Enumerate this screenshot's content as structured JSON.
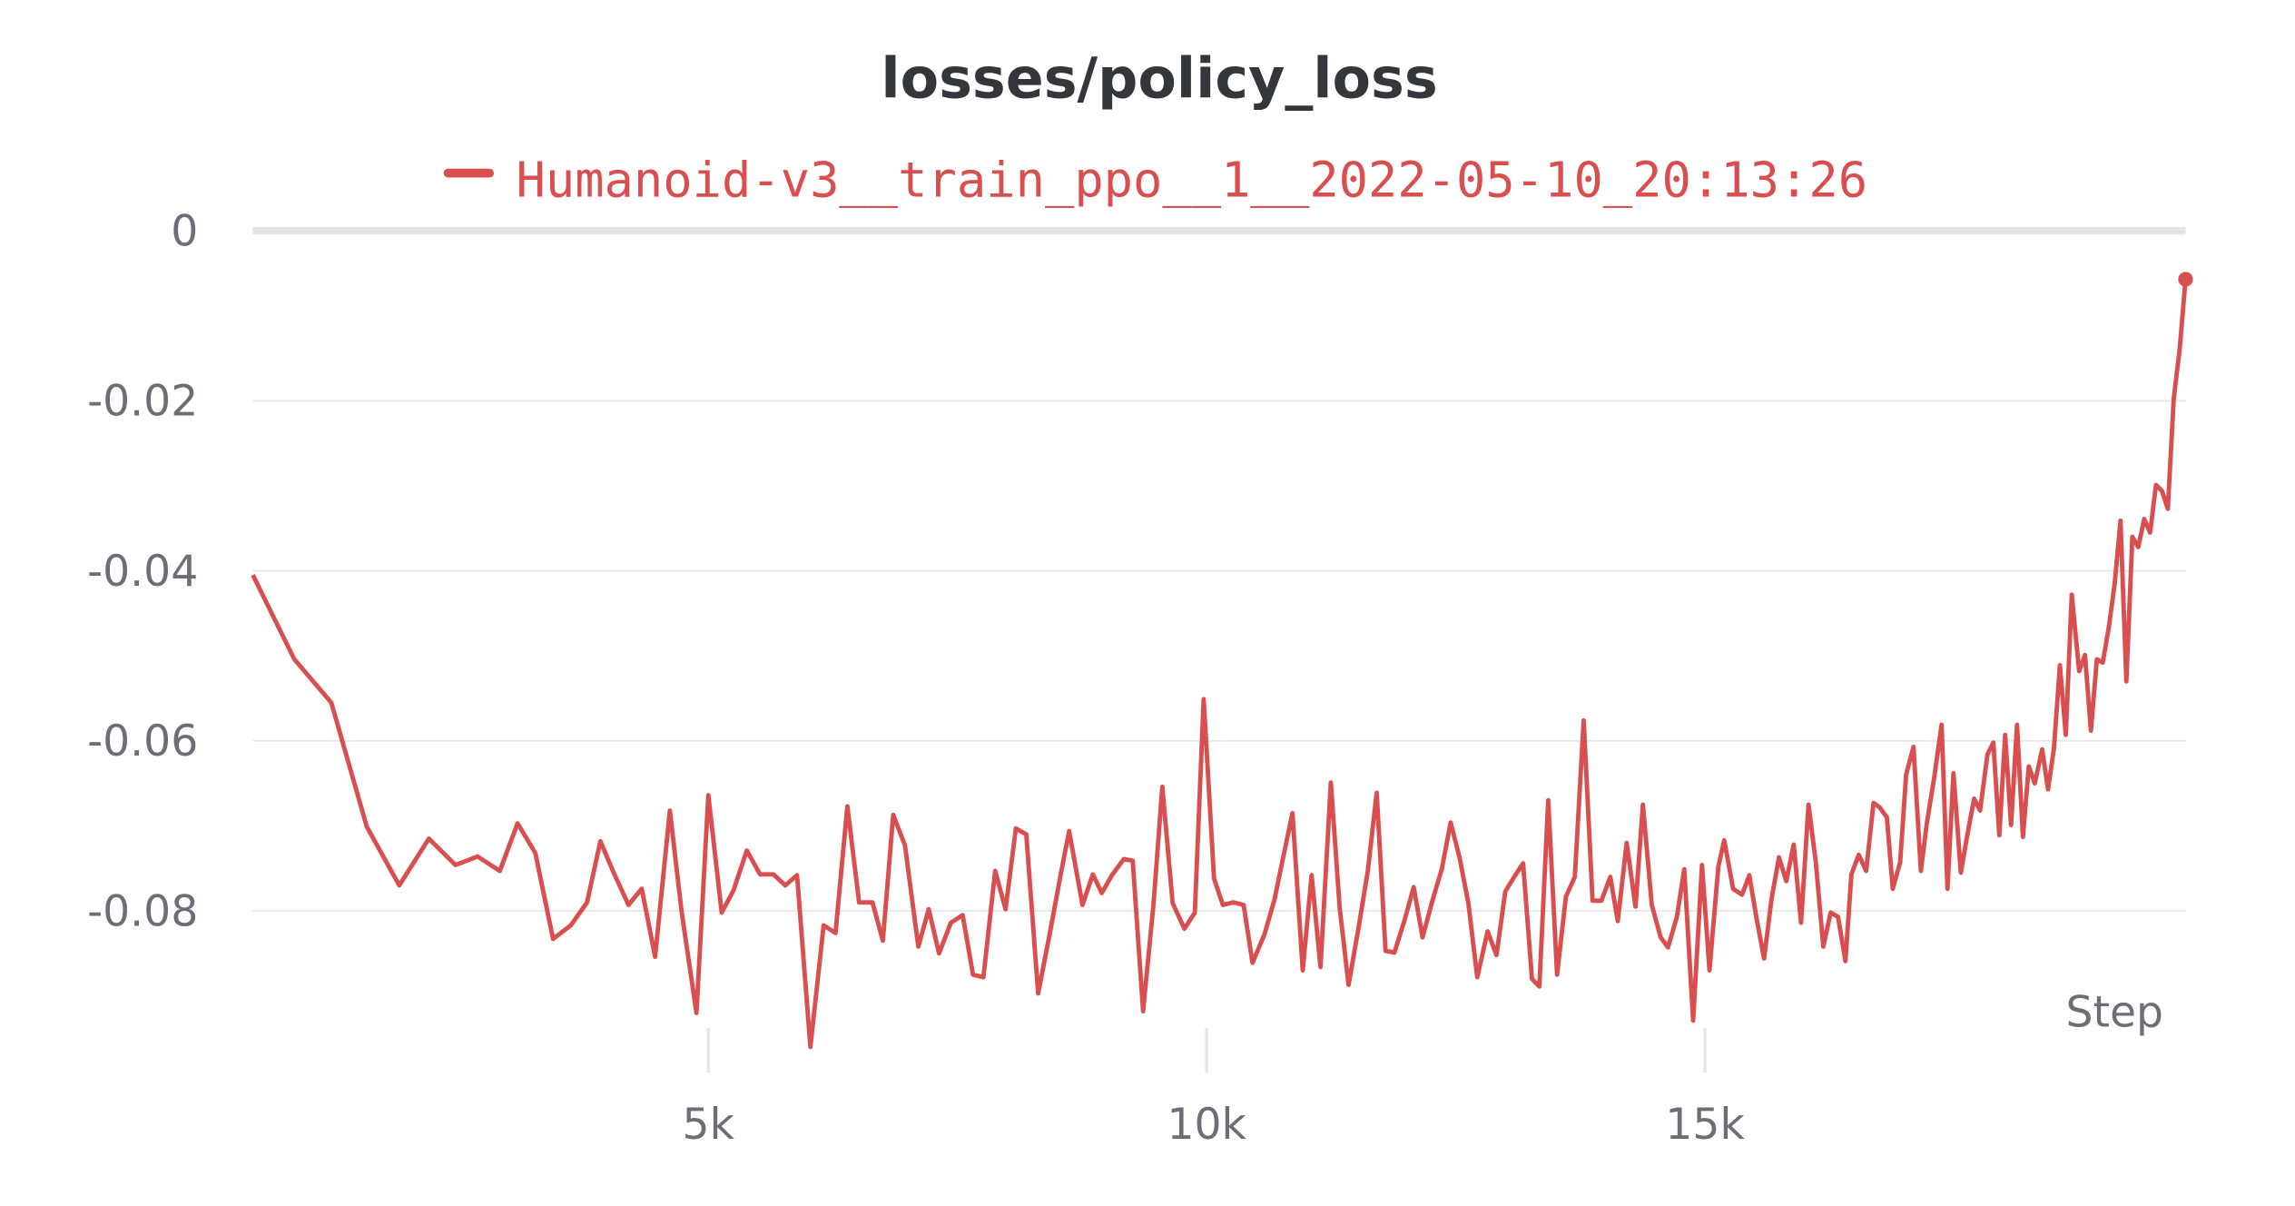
{
  "chart_data": {
    "type": "line",
    "title": "losses/policy_loss",
    "x_label": "Step",
    "x": [
      430,
      846,
      1217,
      1573,
      1899,
      2196,
      2463,
      2685,
      2908,
      3086,
      3264,
      3442,
      3620,
      3783,
      3917,
      4050,
      4199,
      4332,
      4466,
      4614,
      4733,
      4881,
      5000,
      5134,
      5252,
      5386,
      5519,
      5653,
      5772,
      5890,
      6024,
      6157,
      6276,
      6395,
      6513,
      6647,
      6751,
      6855,
      6973,
      7107,
      7211,
      7315,
      7433,
      7552,
      7656,
      7760,
      7878,
      7982,
      8086,
      8190,
      8309,
      8427,
      8531,
      8620,
      8754,
      8858,
      8947,
      9050,
      9169,
      9258,
      9362,
      9466,
      9555,
      9659,
      9777,
      9881,
      9970,
      10074,
      10163,
      10267,
      10371,
      10460,
      10579,
      10682,
      10757,
      10861,
      10964,
      11053,
      11142,
      11246,
      11335,
      11424,
      11528,
      11617,
      11706,
      11795,
      11884,
      11988,
      12077,
      12166,
      12270,
      12359,
      12448,
      12537,
      12626,
      12715,
      12819,
      12908,
      12997,
      13086,
      13175,
      13264,
      13338,
      13427,
      13516,
      13605,
      13694,
      13783,
      13872,
      13961,
      14050,
      14125,
      14214,
      14303,
      14377,
      14466,
      14555,
      14629,
      14718,
      14792,
      14881,
      14970,
      15045,
      15134,
      15193,
      15282,
      15371,
      15445,
      15519,
      15593,
      15668,
      15742,
      15816,
      15890,
      15964,
      16039,
      16113,
      16187,
      16261,
      16335,
      16409,
      16469,
      16543,
      16617,
      16691,
      16751,
      16825,
      16884,
      16958,
      17018,
      17092,
      17166,
      17226,
      17300,
      17374,
      17433,
      17493,
      17567,
      17626,
      17700,
      17760,
      17834,
      17893,
      17953,
      18012,
      18071,
      18131,
      18190,
      18249,
      18309,
      18383,
      18442,
      18501,
      18561,
      18620,
      18680,
      18754,
      18813,
      18872,
      18932,
      18991,
      19050,
      19110,
      19169,
      19228,
      19288,
      19347,
      19407,
      19466,
      19525,
      19585,
      19644,
      19703,
      19763,
      19822
    ],
    "series": [
      {
        "name": "Humanoid-v3__train_ppo__1__2022-05-10_20:13:26",
        "color": "#d94f4f",
        "values": [
          -0.0405,
          -0.0504,
          -0.0555,
          -0.0701,
          -0.077,
          -0.0715,
          -0.0746,
          -0.0736,
          -0.0753,
          -0.0697,
          -0.0732,
          -0.0833,
          -0.0817,
          -0.079,
          -0.0718,
          -0.0755,
          -0.0793,
          -0.0774,
          -0.0854,
          -0.0682,
          -0.0802,
          -0.092,
          -0.0664,
          -0.0802,
          -0.0776,
          -0.0729,
          -0.0757,
          -0.0757,
          -0.077,
          -0.0758,
          -0.096,
          -0.0817,
          -0.0826,
          -0.0677,
          -0.079,
          -0.079,
          -0.0835,
          -0.0687,
          -0.0723,
          -0.0842,
          -0.0798,
          -0.085,
          -0.0814,
          -0.0805,
          -0.0875,
          -0.0878,
          -0.0753,
          -0.0798,
          -0.0703,
          -0.071,
          -0.0897,
          -0.0826,
          -0.076,
          -0.0706,
          -0.0793,
          -0.0757,
          -0.0779,
          -0.0758,
          -0.0739,
          -0.0741,
          -0.0918,
          -0.0793,
          -0.0654,
          -0.0791,
          -0.0821,
          -0.0802,
          -0.0551,
          -0.0762,
          -0.0793,
          -0.079,
          -0.0793,
          -0.0861,
          -0.0828,
          -0.0786,
          -0.0743,
          -0.0685,
          -0.087,
          -0.0758,
          -0.0866,
          -0.0649,
          -0.0797,
          -0.0887,
          -0.0817,
          -0.0753,
          -0.0661,
          -0.0847,
          -0.0849,
          -0.081,
          -0.0772,
          -0.0831,
          -0.0786,
          -0.0751,
          -0.0696,
          -0.0737,
          -0.0791,
          -0.0878,
          -0.0824,
          -0.0852,
          -0.0777,
          -0.076,
          -0.0744,
          -0.088,
          -0.0889,
          -0.067,
          -0.0875,
          -0.0783,
          -0.076,
          -0.0576,
          -0.0788,
          -0.0788,
          -0.076,
          -0.0812,
          -0.072,
          -0.0795,
          -0.0675,
          -0.0793,
          -0.0831,
          -0.0843,
          -0.0807,
          -0.0751,
          -0.0929,
          -0.0746,
          -0.087,
          -0.0748,
          -0.0717,
          -0.0774,
          -0.0781,
          -0.0758,
          -0.081,
          -0.0856,
          -0.0786,
          -0.0737,
          -0.0765,
          -0.0722,
          -0.0814,
          -0.0675,
          -0.0744,
          -0.0842,
          -0.0802,
          -0.0807,
          -0.0859,
          -0.0757,
          -0.0734,
          -0.0753,
          -0.0673,
          -0.0678,
          -0.069,
          -0.0774,
          -0.0743,
          -0.064,
          -0.0607,
          -0.0753,
          -0.0697,
          -0.0643,
          -0.0581,
          -0.0774,
          -0.0638,
          -0.0755,
          -0.0715,
          -0.0668,
          -0.0682,
          -0.0616,
          -0.0602,
          -0.0711,
          -0.0593,
          -0.0699,
          -0.0581,
          -0.0713,
          -0.063,
          -0.065,
          -0.061,
          -0.0657,
          -0.0609,
          -0.0511,
          -0.0593,
          -0.0428,
          -0.0518,
          -0.0499,
          -0.0588,
          -0.0504,
          -0.0508,
          -0.0468,
          -0.0416,
          -0.0341,
          -0.053,
          -0.036,
          -0.0372,
          -0.0339,
          -0.0355,
          -0.0299,
          -0.0306,
          -0.0327,
          -0.0198,
          -0.0139,
          -0.0057
        ]
      }
    ],
    "xlim": [
      430,
      19822
    ],
    "ylim": [
      -0.099,
      0
    ],
    "xticks": [
      {
        "value": 5000,
        "label": "5k"
      },
      {
        "value": 10000,
        "label": "10k"
      },
      {
        "value": 15000,
        "label": "15k"
      }
    ],
    "yticks": [
      0,
      -0.02,
      -0.04,
      -0.06,
      -0.08
    ],
    "grid": true
  }
}
